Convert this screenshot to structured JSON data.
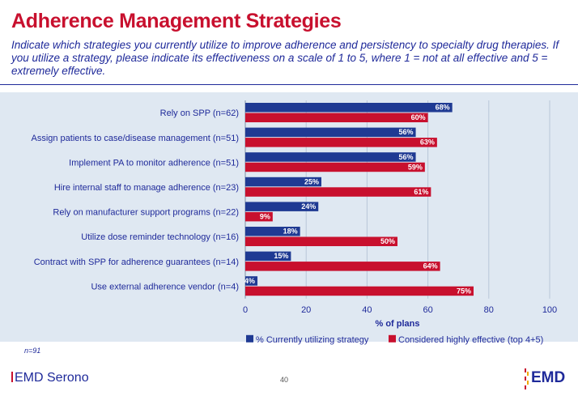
{
  "page": {
    "title": "Adherence Management Strategies",
    "subtitle": "Indicate which strategies you currently utilize to improve adherence and persistency to specialty drug therapies. If you utilize a strategy, please indicate its effectiveness on a scale of 1 to 5, where 1 = not at all effective and 5 = extremely effective.",
    "sample_note": "n=91",
    "page_number": "40",
    "footer_brand": "EMD Serono",
    "corner_brand": "EMD"
  },
  "colors": {
    "series1": "#1f3a93",
    "series2": "#c8102e",
    "grid": "#b8c6d8",
    "text": "#1f2a9a"
  },
  "chart_data": {
    "type": "bar",
    "orientation": "horizontal",
    "categories": [
      "Rely on SPP (n=62)",
      "Assign patients to case/disease management (n=51)",
      "Implement PA to monitor adherence (n=51)",
      "Hire internal staff to manage adherence (n=23)",
      "Rely on manufacturer support programs (n=22)",
      "Utilize dose reminder technology (n=16)",
      "Contract with SPP for adherence guarantees (n=14)",
      "Use external adherence vendor (n=4)"
    ],
    "series": [
      {
        "name": "% Currently utilizing strategy",
        "values": [
          68,
          56,
          56,
          25,
          24,
          18,
          15,
          4
        ]
      },
      {
        "name": "Considered highly effective (top 4+5)",
        "values": [
          60,
          63,
          59,
          61,
          9,
          50,
          64,
          75
        ]
      }
    ],
    "xlabel": "% of plans",
    "xlim": [
      0,
      100
    ],
    "xticks": [
      0,
      20,
      40,
      60,
      80,
      100
    ],
    "value_suffix": "%",
    "grid": true,
    "legend": "bottom"
  }
}
